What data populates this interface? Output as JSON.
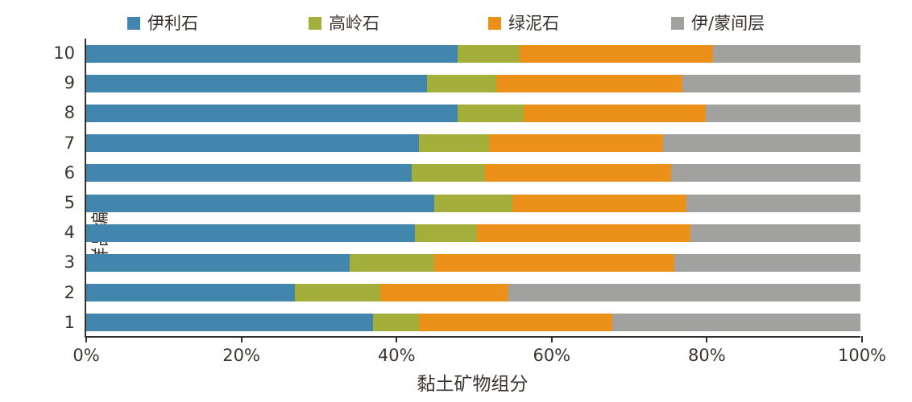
{
  "chart_data": {
    "type": "bar",
    "orientation": "horizontal",
    "stacked": true,
    "unit": "%",
    "xlabel": "黏土矿物组分",
    "ylabel": "样品编号",
    "x_ticks": [
      "0%",
      "20%",
      "40%",
      "60%",
      "80%",
      "100%"
    ],
    "x_tick_percents": [
      0,
      20,
      40,
      60,
      80,
      100
    ],
    "xlim": [
      0,
      100
    ],
    "grid": false,
    "legend_position": "top",
    "categories": [
      "1",
      "2",
      "3",
      "4",
      "5",
      "6",
      "7",
      "8",
      "9",
      "10"
    ],
    "category_order_on_screen": "10 at top, 1 at bottom",
    "series": [
      {
        "name": "伊利石",
        "color": "#4285ad",
        "values": [
          37.0,
          27.0,
          34.0,
          42.5,
          45.0,
          42.0,
          43.0,
          48.0,
          44.0,
          48.0
        ]
      },
      {
        "name": "高岭石",
        "color": "#a3ae3b",
        "values": [
          6.0,
          11.0,
          11.0,
          8.0,
          10.0,
          9.5,
          9.0,
          8.5,
          9.0,
          8.0
        ]
      },
      {
        "name": "绿泥石",
        "color": "#eb9019",
        "values": [
          25.0,
          16.5,
          31.0,
          27.5,
          22.5,
          24.0,
          22.5,
          23.5,
          24.0,
          25.0
        ]
      },
      {
        "name": "伊/蒙间层",
        "color": "#a1a1a0",
        "values": [
          32.0,
          45.5,
          24.0,
          22.0,
          22.5,
          24.5,
          25.5,
          20.0,
          23.0,
          19.0
        ]
      }
    ],
    "axis_color": "#35302c",
    "text_color": "#3b3632",
    "background_color": "#ffffff"
  }
}
